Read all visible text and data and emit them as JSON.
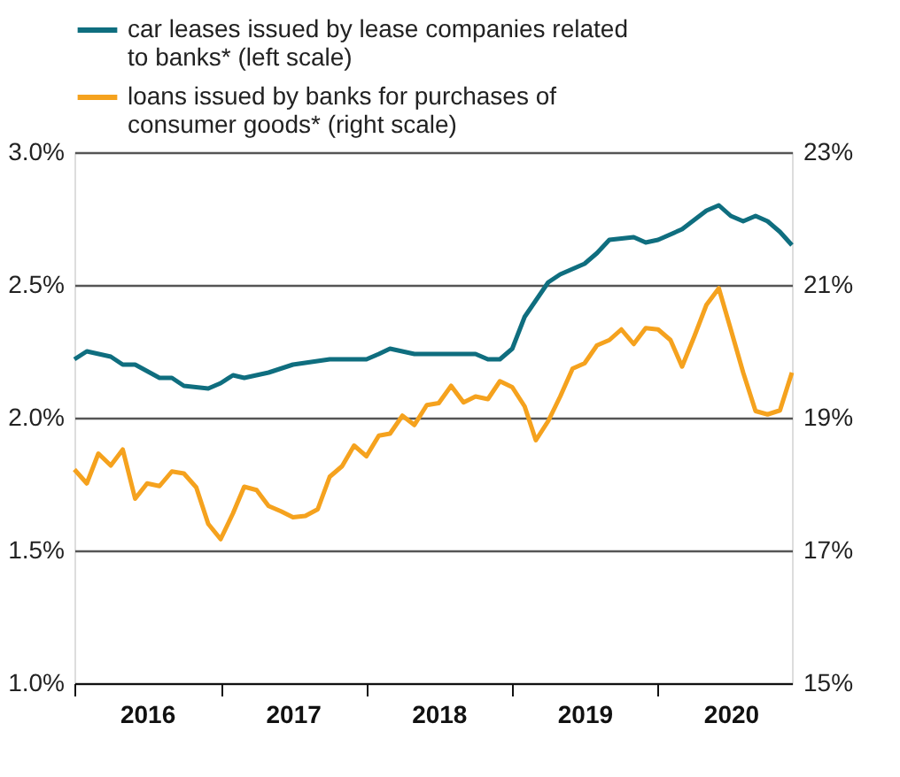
{
  "chart_data": {
    "type": "line",
    "x": [
      "2016-01",
      "2016-02",
      "2016-03",
      "2016-04",
      "2016-05",
      "2016-06",
      "2016-07",
      "2016-08",
      "2016-09",
      "2016-10",
      "2016-11",
      "2016-12",
      "2017-01",
      "2017-02",
      "2017-03",
      "2017-04",
      "2017-05",
      "2017-06",
      "2017-07",
      "2017-08",
      "2017-09",
      "2017-10",
      "2017-11",
      "2017-12",
      "2018-01",
      "2018-02",
      "2018-03",
      "2018-04",
      "2018-05",
      "2018-06",
      "2018-07",
      "2018-08",
      "2018-09",
      "2018-10",
      "2018-11",
      "2018-12",
      "2019-01",
      "2019-02",
      "2019-03",
      "2019-04",
      "2019-05",
      "2019-06",
      "2019-07",
      "2019-08",
      "2019-09",
      "2019-10",
      "2019-11",
      "2019-12",
      "2020-01",
      "2020-02",
      "2020-03",
      "2020-04",
      "2020-05",
      "2020-06",
      "2020-07",
      "2020-08",
      "2020-09",
      "2020-10",
      "2020-11",
      "2020-12"
    ],
    "series": [
      {
        "name": "car leases issued by lease companies related to banks* (left scale)",
        "color": "#0f6e7f",
        "x": [
          "2016-01",
          "2016-02",
          "2016-04",
          "2016-05",
          "2016-06",
          "2016-08",
          "2016-09",
          "2016-10",
          "2016-12",
          "2017-01",
          "2017-02",
          "2017-03",
          "2017-05",
          "2017-07",
          "2017-10",
          "2017-11",
          "2018-01",
          "2018-02",
          "2018-03",
          "2018-05",
          "2018-08",
          "2018-10",
          "2018-11",
          "2018-12",
          "2019-01",
          "2019-02",
          "2019-04",
          "2019-05",
          "2019-07",
          "2019-08",
          "2019-09",
          "2019-11",
          "2019-12",
          "2020-01",
          "2020-03",
          "2020-05",
          "2020-06",
          "2020-07",
          "2020-08",
          "2020-09",
          "2020-10",
          "2020-11",
          "2020-12"
        ],
        "values": [
          2.22,
          2.25,
          2.23,
          2.2,
          2.2,
          2.15,
          2.15,
          2.12,
          2.11,
          2.13,
          2.16,
          2.15,
          2.17,
          2.2,
          2.22,
          2.22,
          2.22,
          2.24,
          2.26,
          2.24,
          2.24,
          2.24,
          2.22,
          2.22,
          2.26,
          2.38,
          2.51,
          2.54,
          2.58,
          2.62,
          2.67,
          2.68,
          2.66,
          2.67,
          2.71,
          2.78,
          2.8,
          2.76,
          2.74,
          2.76,
          2.74,
          2.7,
          2.65
        ]
      },
      {
        "name": "loans issued by banks for purchases of consumer goods* (right scale)",
        "color": "#f5a21e",
        "axis": "y2",
        "values": [
          18.22,
          18.01,
          18.46,
          18.28,
          18.52,
          17.78,
          18.01,
          17.97,
          18.19,
          18.16,
          17.95,
          17.4,
          17.17,
          17.56,
          17.96,
          17.91,
          17.67,
          17.59,
          17.5,
          17.52,
          17.62,
          18.11,
          18.27,
          18.58,
          18.42,
          18.73,
          18.76,
          19.03,
          18.89,
          19.19,
          19.22,
          19.48,
          19.23,
          19.32,
          19.28,
          19.55,
          19.46,
          19.17,
          18.66,
          18.95,
          19.32,
          19.74,
          19.82,
          20.09,
          20.17,
          20.33,
          20.11,
          20.35,
          20.33,
          20.17,
          19.77,
          20.23,
          20.7,
          20.95,
          20.33,
          19.68,
          19.1,
          19.05,
          19.11,
          19.68
        ]
      }
    ],
    "xlim": [
      "2016-01",
      "2020-12"
    ],
    "xticks": [
      {
        "value": "2016-01",
        "label": null
      },
      {
        "value": "2016-07",
        "label": "2016"
      },
      {
        "value": "2017-01",
        "label": null
      },
      {
        "value": "2017-07",
        "label": "2017"
      },
      {
        "value": "2018-01",
        "label": null
      },
      {
        "value": "2018-07",
        "label": "2018"
      },
      {
        "value": "2019-01",
        "label": null
      },
      {
        "value": "2019-07",
        "label": "2019"
      },
      {
        "value": "2020-01",
        "label": null
      },
      {
        "value": "2020-07",
        "label": "2020"
      }
    ],
    "ylim": [
      1.0,
      3.0
    ],
    "yticks": [
      {
        "value": 1.0,
        "label": "1.0%"
      },
      {
        "value": 1.5,
        "label": "1.5%"
      },
      {
        "value": 2.0,
        "label": "2.0%"
      },
      {
        "value": 2.5,
        "label": "2.5%"
      },
      {
        "value": 3.0,
        "label": "3.0%"
      }
    ],
    "y2lim": [
      15,
      23
    ],
    "y2ticks": [
      {
        "value": 15,
        "label": "15%"
      },
      {
        "value": 17,
        "label": "17%"
      },
      {
        "value": 19,
        "label": "19%"
      },
      {
        "value": 21,
        "label": "21%"
      },
      {
        "value": 23,
        "label": "23%"
      }
    ],
    "grid": "y",
    "legend": "top left",
    "marker": "none",
    "line_style": "solid"
  }
}
